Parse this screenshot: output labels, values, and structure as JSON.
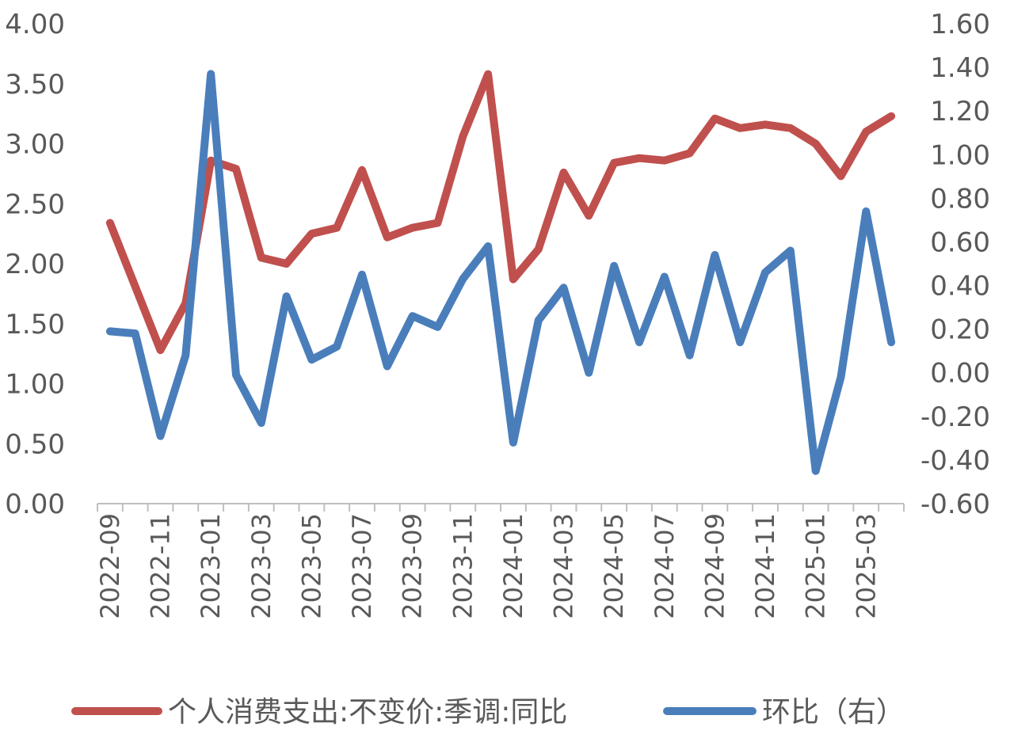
{
  "chart_data": {
    "type": "line",
    "title": "",
    "x": [
      "2022-09",
      "2022-10",
      "2022-11",
      "2022-12",
      "2023-01",
      "2023-02",
      "2023-03",
      "2023-04",
      "2023-05",
      "2023-06",
      "2023-07",
      "2023-08",
      "2023-09",
      "2023-10",
      "2023-11",
      "2023-12",
      "2024-01",
      "2024-02",
      "2024-03",
      "2024-04",
      "2024-05",
      "2024-06",
      "2024-07",
      "2024-08",
      "2024-09",
      "2024-10",
      "2024-11",
      "2024-12",
      "2025-01",
      "2025-02",
      "2025-03",
      "2025-04"
    ],
    "x_tick_labels": [
      "2022-09",
      "2022-11",
      "2023-01",
      "2023-03",
      "2023-05",
      "2023-07",
      "2023-09",
      "2023-11",
      "2024-01",
      "2024-03",
      "2024-05",
      "2024-07",
      "2024-09",
      "2024-11",
      "2025-01",
      "2025-03"
    ],
    "y_left": {
      "lim": [
        0,
        4
      ],
      "ticks": [
        "0.00",
        "0.50",
        "1.00",
        "1.50",
        "2.00",
        "2.50",
        "3.00",
        "3.50",
        "4.00"
      ]
    },
    "y_right": {
      "lim": [
        -0.6,
        1.6
      ],
      "ticks": [
        "-0.60",
        "-0.40",
        "-0.20",
        "0.00",
        "0.20",
        "0.40",
        "0.60",
        "0.80",
        "1.00",
        "1.20",
        "1.40",
        "1.60"
      ]
    },
    "grid": false,
    "legend_position": "bottom",
    "series": [
      {
        "name": "个人消费支出:不变价:季调:同比",
        "axis": "left",
        "color": "#C0504D",
        "values": [
          2.34,
          1.81,
          1.28,
          1.67,
          2.86,
          2.79,
          2.05,
          2.0,
          2.25,
          2.3,
          2.78,
          2.22,
          2.3,
          2.34,
          3.06,
          3.58,
          1.87,
          2.12,
          2.76,
          2.4,
          2.84,
          2.88,
          2.86,
          2.92,
          3.21,
          3.13,
          3.16,
          3.13,
          3.0,
          2.73,
          3.1,
          3.23
        ]
      },
      {
        "name": "环比（右）",
        "axis": "right",
        "color": "#4A7EBB",
        "values": [
          0.19,
          0.18,
          -0.29,
          0.08,
          1.37,
          -0.01,
          -0.23,
          0.35,
          0.06,
          0.12,
          0.45,
          0.03,
          0.26,
          0.21,
          0.43,
          0.58,
          -0.32,
          0.24,
          0.39,
          0.0,
          0.49,
          0.14,
          0.44,
          0.08,
          0.54,
          0.14,
          0.46,
          0.56,
          -0.45,
          -0.02,
          0.74,
          0.14
        ]
      }
    ]
  }
}
